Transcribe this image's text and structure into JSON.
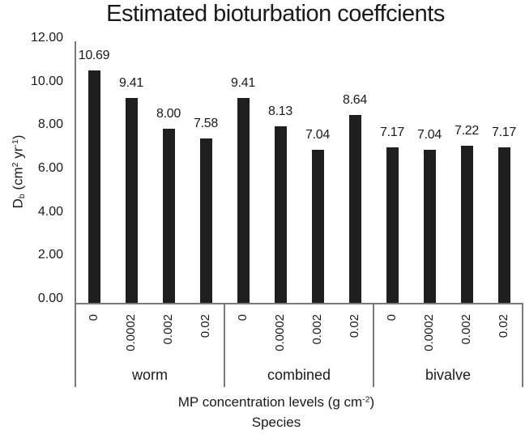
{
  "title": "Estimated bioturbation coeffcients",
  "chart_data": {
    "type": "bar",
    "title": "Estimated bioturbation coeffcients",
    "groups": [
      {
        "label": "worm",
        "categories": [
          "0",
          "0.0002",
          "0.002",
          "0.02"
        ],
        "values": [
          10.69,
          9.41,
          8.0,
          7.58
        ],
        "value_labels": [
          "10.69",
          "9.41",
          "8.00",
          "7.58"
        ]
      },
      {
        "label": "combined",
        "categories": [
          "0",
          "0.0002",
          "0.002",
          "0.02"
        ],
        "values": [
          9.41,
          8.13,
          7.04,
          8.64
        ],
        "value_labels": [
          "9.41",
          "8.13",
          "7.04",
          "8.64"
        ]
      },
      {
        "label": "bivalve",
        "categories": [
          "0",
          "0.0002",
          "0.002",
          "0.02"
        ],
        "values": [
          7.17,
          7.04,
          7.22,
          7.17
        ],
        "value_labels": [
          "7.17",
          "7.04",
          "7.22",
          "7.17"
        ]
      }
    ],
    "ylim": [
      0,
      12
    ],
    "ytick_step": 2,
    "ytick_labels": [
      "0.00",
      "2.00",
      "4.00",
      "6.00",
      "8.00",
      "10.00",
      "12.00"
    ],
    "ylabel_parts": [
      {
        "t": "D"
      },
      {
        "t": "b",
        "s": "sub"
      },
      {
        "t": " (cm"
      },
      {
        "t": "2",
        "s": "sup"
      },
      {
        "t": " yr"
      },
      {
        "t": "-1",
        "s": "sup"
      },
      {
        "t": ")"
      }
    ],
    "xlabel_line1_parts": [
      {
        "t": "MP concentration levels (g cm"
      },
      {
        "t": "-2",
        "s": "sup"
      },
      {
        "t": ")"
      }
    ],
    "xlabel_line2": "Species",
    "grid": false,
    "legend": false,
    "bar_color": "#1f1f1f",
    "axis_color": "#7a7a7a",
    "text_color": "#1a1a1a"
  }
}
